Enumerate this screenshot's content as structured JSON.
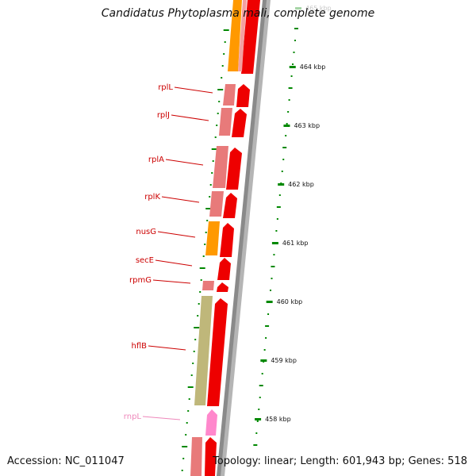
{
  "title": "Candidatus Phytoplasma mali, complete genome",
  "accession": "Accession: NC_011047",
  "topology": "Topology: linear; Length: 601,943 bp; Genes: 518",
  "colors": {
    "reverse_strand": "#e87a7a",
    "forward_strand": "#ee0000",
    "orange": "#ff9900",
    "olive": "#bfb77a",
    "pink": "#ff88cc",
    "gene_label": "#cc0000",
    "rna_label": "#ee88bb",
    "tick": "#008800",
    "backbone": "#888888"
  },
  "scale_labels": [
    "465 kbp",
    "464 kbp",
    "463 kbp",
    "462 kbp",
    "461 kbp",
    "460 kbp",
    "459 kbp",
    "458 kbp"
  ],
  "gene_labels": [
    {
      "text": "rplL",
      "type": "gene"
    },
    {
      "text": "rplJ",
      "type": "gene"
    },
    {
      "text": "rplA",
      "type": "gene"
    },
    {
      "text": "rplK",
      "type": "gene"
    },
    {
      "text": "nusG",
      "type": "gene"
    },
    {
      "text": "secE",
      "type": "gene"
    },
    {
      "text": "rpmG",
      "type": "gene"
    },
    {
      "text": "hflB",
      "type": "gene"
    },
    {
      "text": "rnpL",
      "type": "rna"
    }
  ]
}
